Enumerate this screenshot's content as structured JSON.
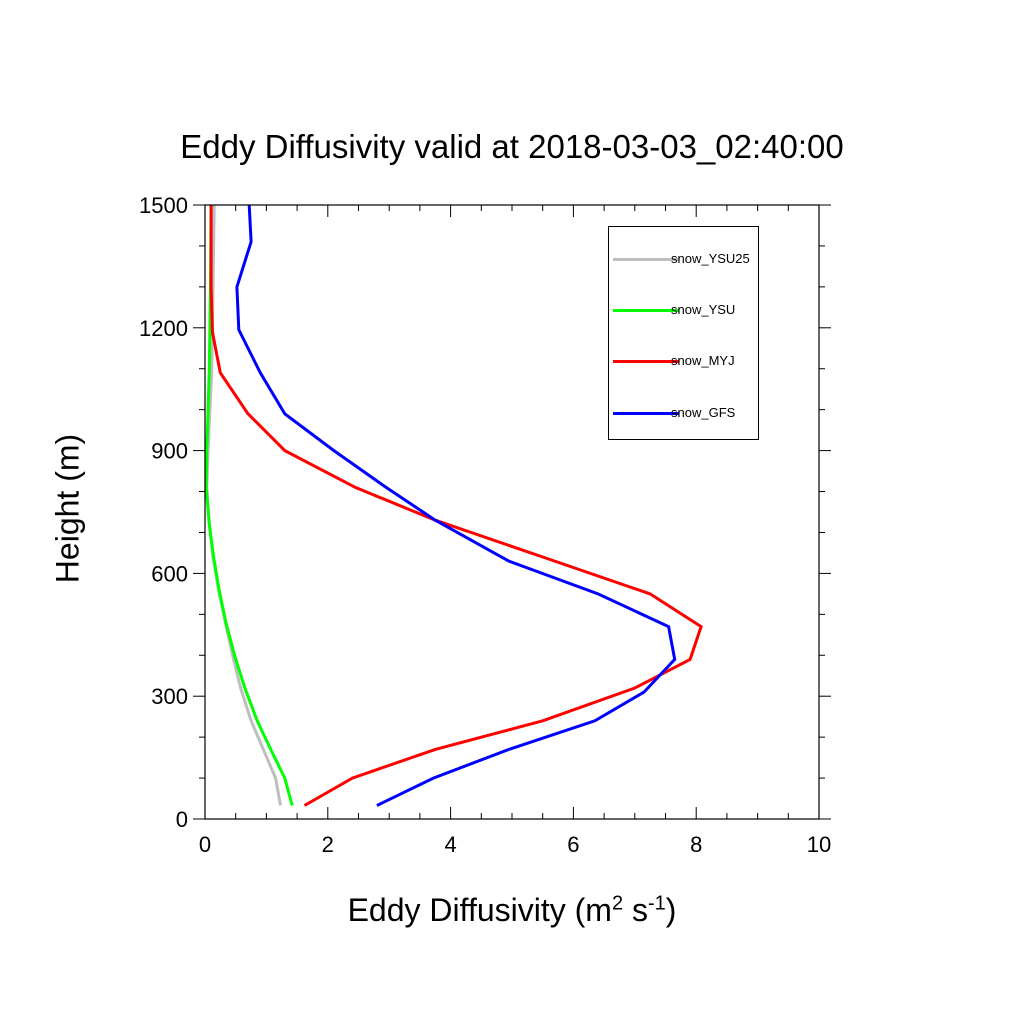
{
  "chart_data": {
    "type": "line",
    "title": "Eddy Diffusivity valid at 2018-03-03_02:40:00",
    "xlabel": {
      "text": "Eddy Diffusivity (m",
      "sup1": "2",
      "mid": " s",
      "sup2": "-1",
      "end": ")"
    },
    "ylabel": "Height (m)",
    "xlim": [
      0,
      10
    ],
    "ylim": [
      0,
      1500
    ],
    "xticks": [
      0,
      2,
      4,
      6,
      8,
      10
    ],
    "yticks": [
      0,
      300,
      600,
      900,
      1200,
      1500
    ],
    "legend_position": "top-right",
    "grid": false,
    "series": [
      {
        "name": "snow_YSU25",
        "color": "#bebebe",
        "x": [
          1.23,
          1.15,
          0.95,
          0.75,
          0.58,
          0.45,
          0.33,
          0.22,
          0.13,
          0.07,
          0.03,
          0.05,
          0.08,
          0.11,
          0.13,
          0.15
        ],
        "y": [
          33,
          100,
          170,
          240,
          320,
          400,
          480,
          560,
          640,
          720,
          810,
          900,
          1000,
          1100,
          1300,
          1500
        ]
      },
      {
        "name": "snow_YSU",
        "color": "#00ff00",
        "x": [
          1.42,
          1.3,
          1.07,
          0.85,
          0.65,
          0.48,
          0.34,
          0.23,
          0.14,
          0.07,
          0.02,
          0.03,
          0.05,
          0.07,
          0.08,
          0.09,
          0.1
        ],
        "y": [
          33,
          100,
          170,
          240,
          320,
          400,
          480,
          560,
          640,
          720,
          810,
          900,
          1000,
          1100,
          1200,
          1300,
          1500
        ]
      },
      {
        "name": "snow_MYJ",
        "color": "#ff0000",
        "x": [
          1.62,
          2.4,
          3.75,
          5.5,
          7.0,
          7.9,
          8.08,
          7.25,
          5.5,
          3.75,
          2.45,
          1.3,
          0.7,
          0.25,
          0.12,
          0.1,
          0.1
        ],
        "y": [
          33,
          100,
          170,
          240,
          320,
          390,
          470,
          550,
          640,
          730,
          810,
          900,
          990,
          1090,
          1190,
          1300,
          1500
        ]
      },
      {
        "name": "snow_GFS",
        "color": "#0000ff",
        "x": [
          2.8,
          3.72,
          4.95,
          6.35,
          7.15,
          7.65,
          7.55,
          6.4,
          4.95,
          3.75,
          2.95,
          2.1,
          1.3,
          0.9,
          0.55,
          0.52,
          0.75,
          0.72
        ],
        "y": [
          33,
          100,
          170,
          240,
          310,
          390,
          470,
          550,
          630,
          730,
          810,
          900,
          990,
          1090,
          1195,
          1300,
          1410,
          1500
        ]
      }
    ]
  }
}
